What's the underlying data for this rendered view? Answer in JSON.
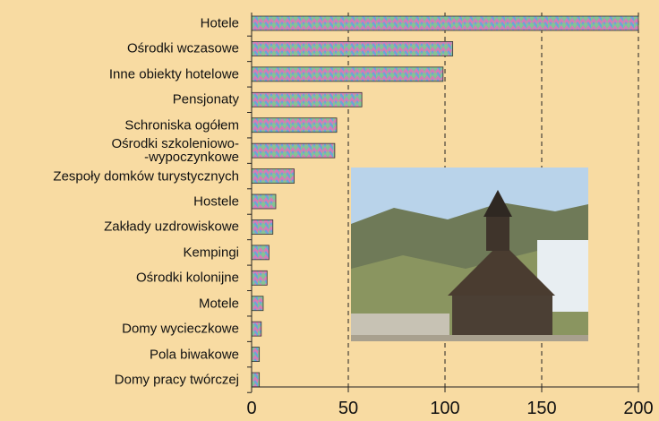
{
  "chart_data": {
    "type": "bar",
    "orientation": "horizontal",
    "categories": [
      "Hotele",
      "Ośrodki wczasowe",
      "Inne obiekty hotelowe",
      "Pensjonaty",
      "Schroniska ogółem",
      "Ośrodki szkoleniowo-\n-wypoczynkowe",
      "Zespoły domków turystycznych",
      "Hostele",
      "Zakłady uzdrowiskowe",
      "Kempingi",
      "Ośrodki kolonijne",
      "Motele",
      "Domy wycieczkowe",
      "Pola biwakowe",
      "Domy pracy twórczej"
    ],
    "values": [
      200,
      104,
      99,
      57,
      44,
      43,
      22,
      12.5,
      11,
      9,
      8,
      6,
      5,
      4,
      4
    ],
    "colors": [
      "#d77cb4",
      "#6aa6d8",
      "#86c78e"
    ],
    "xlim": [
      0,
      200
    ],
    "xticks": [
      0,
      50,
      100,
      150,
      200
    ],
    "grid": true
  }
}
